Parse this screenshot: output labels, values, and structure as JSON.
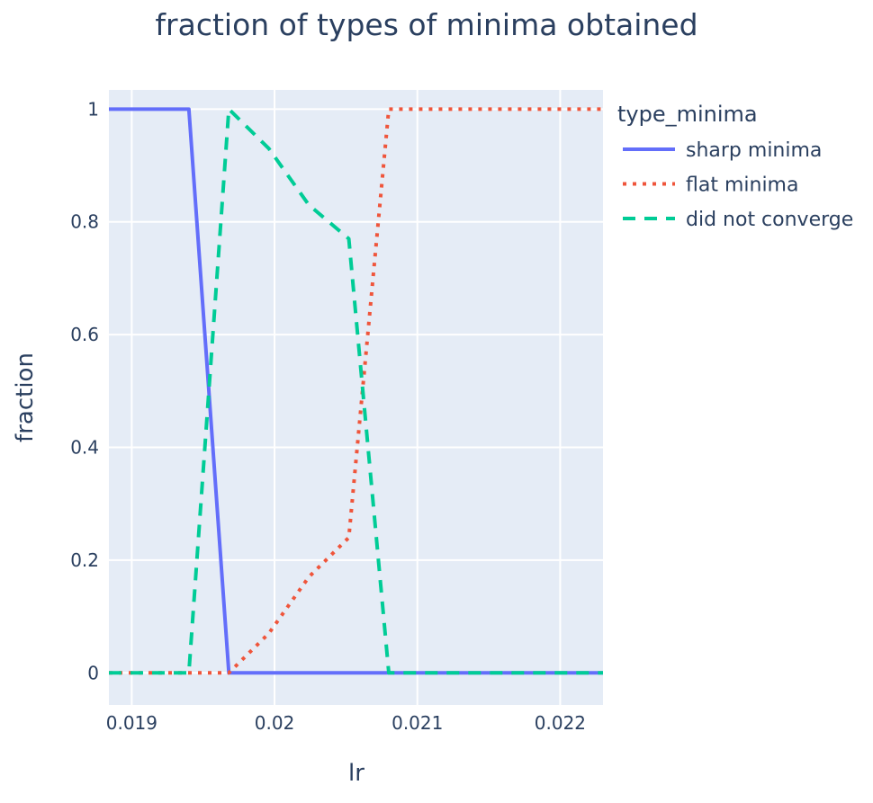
{
  "chart_data": {
    "type": "line",
    "title": "fraction of types of minima obtained",
    "xlabel": "lr",
    "ylabel": "fraction",
    "xlim": [
      0.01884,
      0.0223
    ],
    "ylim": [
      -0.057,
      1.034
    ],
    "xticks": [
      0.019,
      0.02,
      0.021,
      0.022
    ],
    "xtick_labels": [
      "0.019",
      "0.02",
      "0.021",
      "0.022"
    ],
    "yticks": [
      0,
      0.2,
      0.4,
      0.6,
      0.8,
      1
    ],
    "ytick_labels": [
      "0",
      "0.2",
      "0.4",
      "0.6",
      "0.8",
      "1"
    ],
    "grid": true,
    "legend_title": "type_minima",
    "legend_position": "right",
    "series": [
      {
        "name": "sharp minima",
        "color": "#636efa",
        "dash": "solid",
        "x": [
          0.01884,
          0.0194,
          0.01968,
          0.01996,
          0.02024,
          0.02052,
          0.0208,
          0.02108,
          0.02136,
          0.02164,
          0.02192,
          0.0223
        ],
        "y": [
          1,
          1,
          0,
          0,
          0,
          0,
          0,
          0,
          0,
          0,
          0,
          0
        ]
      },
      {
        "name": "flat minima",
        "color": "#ef553b",
        "dash": "dot",
        "x": [
          0.01884,
          0.0194,
          0.01968,
          0.01996,
          0.02024,
          0.02052,
          0.0208,
          0.02108,
          0.02136,
          0.02164,
          0.02192,
          0.0223
        ],
        "y": [
          0,
          0,
          0,
          0.07,
          0.17,
          0.24,
          1,
          1,
          1,
          1,
          1,
          1
        ]
      },
      {
        "name": "did not converge",
        "color": "#00cc96",
        "dash": "dash",
        "x": [
          0.01884,
          0.0194,
          0.01968,
          0.01996,
          0.02024,
          0.02052,
          0.0208,
          0.02108,
          0.02136,
          0.02164,
          0.02192,
          0.0223
        ],
        "y": [
          0,
          0,
          1,
          0.93,
          0.83,
          0.77,
          0,
          0,
          0,
          0,
          0,
          0
        ]
      }
    ]
  }
}
